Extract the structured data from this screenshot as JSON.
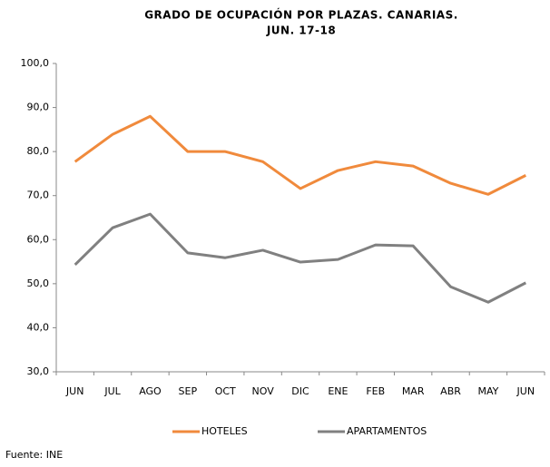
{
  "chart_data": {
    "type": "line",
    "title": [
      "GRADO DE OCUPACIÓN POR PLAZAS. CANARIAS.",
      "JUN. 17-18"
    ],
    "categories": [
      "JUN",
      "JUL",
      "AGO",
      "SEP",
      "OCT",
      "NOV",
      "DIC",
      "ENE",
      "FEB",
      "MAR",
      "ABR",
      "MAY",
      "JUN"
    ],
    "series": [
      {
        "name": "HOTELES",
        "color": "#f08a3c",
        "values": [
          77.7,
          83.9,
          88.0,
          80.0,
          80.0,
          77.7,
          71.6,
          75.7,
          77.7,
          76.7,
          72.8,
          70.3,
          74.6
        ]
      },
      {
        "name": "APARTAMENTOS",
        "color": "#808080",
        "values": [
          54.3,
          62.7,
          65.8,
          57.0,
          55.9,
          57.6,
          54.9,
          55.5,
          58.8,
          58.6,
          49.3,
          45.8,
          50.2
        ]
      }
    ],
    "ylim": [
      30,
      100
    ],
    "yticks": [
      {
        "value": 30,
        "label": "30,0"
      },
      {
        "value": 40,
        "label": "40,0"
      },
      {
        "value": 50,
        "label": "50,0"
      },
      {
        "value": 60,
        "label": "60,0"
      },
      {
        "value": 70,
        "label": "70,0"
      },
      {
        "value": 80,
        "label": "80,0"
      },
      {
        "value": 90,
        "label": "90,0"
      },
      {
        "value": 100,
        "label": "100,0"
      }
    ],
    "grid": false,
    "legend": "bottom",
    "note": "Fuente: INE"
  }
}
